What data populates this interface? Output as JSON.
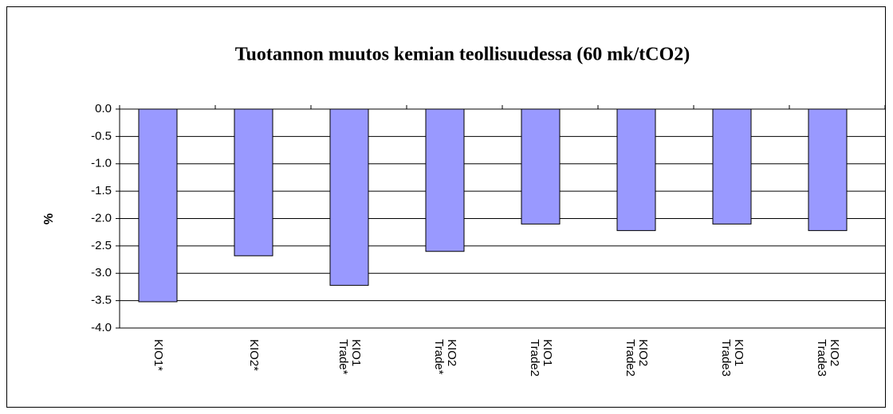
{
  "chart_data": {
    "type": "bar",
    "title": "Tuotannon muutos kemian teollisuudessa (60 mk/tCO2)",
    "y_label": "%",
    "categories": [
      "KIO1*",
      "KIO2*",
      "KIO1 Trade*",
      "KIO2 Trade*",
      "KIO1 Trade2",
      "KIO2 Trade2",
      "KIO1 Trade3",
      "KIO2 Trade3"
    ],
    "values": [
      -3.52,
      -2.68,
      -3.22,
      -2.6,
      -2.1,
      -2.22,
      -2.1,
      -2.22
    ],
    "color": "#9999ff",
    "ylim": [
      -4,
      0
    ],
    "yticks": [
      {
        "value": 0,
        "label": "0.0"
      },
      -0.5,
      {
        "value": -1,
        "label": "-1.0"
      },
      -1.5,
      {
        "value": -2,
        "label": "-2.0"
      },
      -2.5,
      {
        "value": -3,
        "label": "-3.0"
      },
      -3.5,
      {
        "value": -4,
        "label": "-4.0"
      }
    ],
    "grid": true
  }
}
